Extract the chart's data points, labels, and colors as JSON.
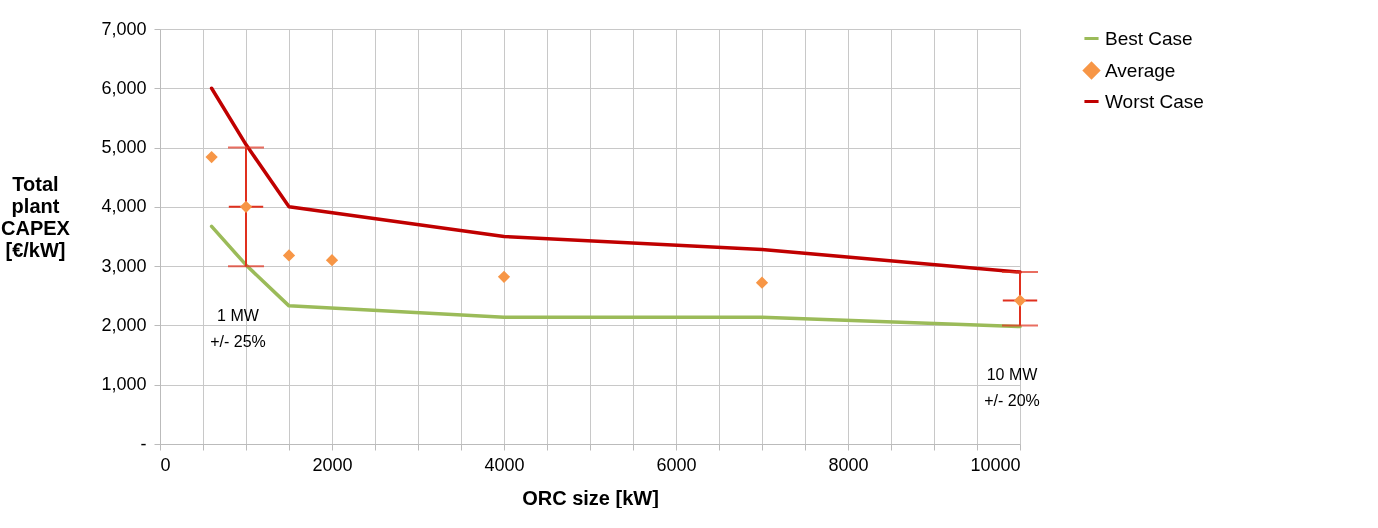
{
  "chart_data": {
    "type": "line",
    "xlabel": "ORC size [kW]",
    "ylabel": "Total plant CAPEX [€/kW]",
    "xlim": [
      0,
      10000
    ],
    "xticks": [
      0,
      {
        "value": 500,
        "label": null
      },
      {
        "value": 1000,
        "label": null
      },
      {
        "value": 1500,
        "label": null
      },
      2000,
      {
        "value": 2500,
        "label": null
      },
      {
        "value": 3000,
        "label": null
      },
      {
        "value": 3500,
        "label": null
      },
      4000,
      {
        "value": 4500,
        "label": null
      },
      {
        "value": 5000,
        "label": null
      },
      {
        "value": 5500,
        "label": null
      },
      6000,
      {
        "value": 6500,
        "label": null
      },
      {
        "value": 7000,
        "label": null
      },
      {
        "value": 7500,
        "label": null
      },
      8000,
      {
        "value": 8500,
        "label": null
      },
      {
        "value": 9000,
        "label": null
      },
      {
        "value": 9500,
        "label": null
      },
      10000
    ],
    "ylim": [
      0,
      7000
    ],
    "yticks": [
      {
        "value": 0,
        "label": "-"
      },
      {
        "value": 1000,
        "label": "1,000"
      },
      {
        "value": 2000,
        "label": "2,000"
      },
      {
        "value": 3000,
        "label": "3,000"
      },
      {
        "value": 4000,
        "label": "4,000"
      },
      {
        "value": 5000,
        "label": "5,000"
      },
      {
        "value": 6000,
        "label": "6,000"
      },
      {
        "value": 7000,
        "label": "7,000"
      }
    ],
    "grid": true,
    "legend": "right",
    "series": [
      {
        "name": "Best Case",
        "color": "#9bbb59",
        "x": [
          600,
          1000,
          1500,
          4000,
          7000,
          10000
        ],
        "values": [
          3670,
          3020,
          2330,
          2140,
          2140,
          1980
        ]
      },
      {
        "name": "Average",
        "type": "scatter",
        "marker": "diamond",
        "color": "#f79646",
        "x": [
          600,
          1000,
          1500,
          2000,
          4000,
          7000,
          10000
        ],
        "values": [
          4840,
          4000,
          3180,
          3100,
          2820,
          2720,
          2420
        ],
        "errors": [
          null,
          [
            3000,
            5000
          ],
          null,
          null,
          null,
          null,
          [
            2000,
            2900
          ]
        ],
        "xerrors": [
          null,
          200,
          null,
          null,
          null,
          null,
          200
        ]
      },
      {
        "name": "Worst Case",
        "color": "#c00000",
        "x": [
          600,
          1000,
          1500,
          4000,
          7000,
          10000
        ],
        "values": [
          6000,
          5050,
          4000,
          3500,
          3280,
          2900
        ]
      }
    ],
    "annotations": [
      "1 MW\n+/- 25%",
      "10 MW\n+/- 20%"
    ]
  }
}
